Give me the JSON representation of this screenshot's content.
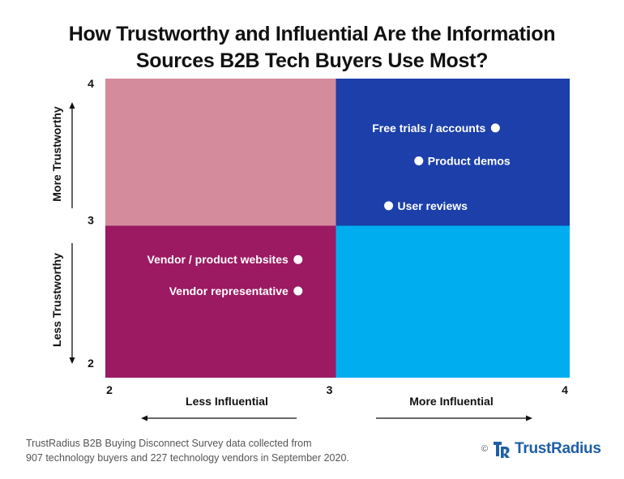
{
  "header": {
    "title_line1": "How Trustworthy and Influential Are the Information",
    "title_line2": "Sources B2B Tech Buyers Use Most?"
  },
  "chart_data": {
    "type": "scatter",
    "title": "How Trustworthy and Influential Are the Information Sources B2B Tech Buyers Use Most?",
    "xlim": [
      2,
      4
    ],
    "ylim": [
      2,
      4
    ],
    "x_ticks": [
      "2",
      "3",
      "4"
    ],
    "y_ticks": [
      "2",
      "3",
      "4"
    ],
    "x_axis_left_label": "Less Influential",
    "x_axis_right_label": "More Influential",
    "y_axis_top_label": "More Trustworthy",
    "y_axis_bottom_label": "Less Trustworthy",
    "quadrant_colors": {
      "top_left": "#d48c9c",
      "top_right": "#1c3faa",
      "bottom_left": "#9b1a62",
      "bottom_right": "#00aef0"
    },
    "points": [
      {
        "label": "Free trials / accounts",
        "x": 3.68,
        "y": 3.67,
        "label_side": "left"
      },
      {
        "label": "Product demos",
        "x": 3.35,
        "y": 3.45,
        "label_side": "right"
      },
      {
        "label": "User reviews",
        "x": 3.22,
        "y": 3.15,
        "label_side": "right"
      },
      {
        "label": "Vendor / product websites",
        "x": 2.83,
        "y": 2.79,
        "label_side": "left"
      },
      {
        "label": "Vendor representative",
        "x": 2.83,
        "y": 2.58,
        "label_side": "left"
      }
    ],
    "grid": false,
    "legend": "none"
  },
  "footer": {
    "source_line1": "TrustRadius B2B Buying Disconnect Survey data collected from",
    "source_line2": "907 technology buyers and 227 technology vendors in September 2020.",
    "copyright": "©",
    "brand_name": "TrustRadius",
    "brand_color": "#1f5fa6"
  }
}
